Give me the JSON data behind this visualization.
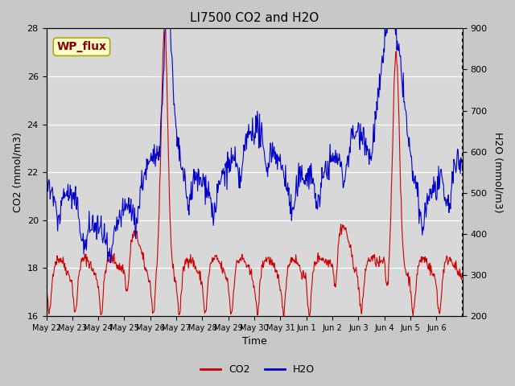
{
  "title": "LI7500 CO2 and H2O",
  "xlabel": "Time",
  "ylabel_left": "CO2 (mmol/m3)",
  "ylabel_right": "H2O (mmol/m3)",
  "ylim_left": [
    16,
    28
  ],
  "ylim_right": [
    200,
    900
  ],
  "yticks_left": [
    16,
    18,
    20,
    22,
    24,
    26,
    28
  ],
  "yticks_right": [
    200,
    300,
    400,
    500,
    600,
    700,
    800,
    900
  ],
  "xtick_labels": [
    "May 22",
    "May 23",
    "May 24",
    "May 25",
    "May 26",
    "May 27",
    "May 28",
    "May 29",
    "May 30",
    "May 31",
    "Jun 1",
    "Jun 2",
    "Jun 3",
    "Jun 4",
    "Jun 5",
    "Jun 6"
  ],
  "co2_color": "#cc0000",
  "h2o_color": "#0000cc",
  "plot_bg_color": "#d8d8d8",
  "fig_bg_color": "#c8c8c8",
  "annotation_text": "WP_flux",
  "annotation_bg": "#ffffcc",
  "annotation_border": "#aaaa00",
  "annotation_color": "#8b0000",
  "legend_co2": "CO2",
  "legend_h2o": "H2O"
}
